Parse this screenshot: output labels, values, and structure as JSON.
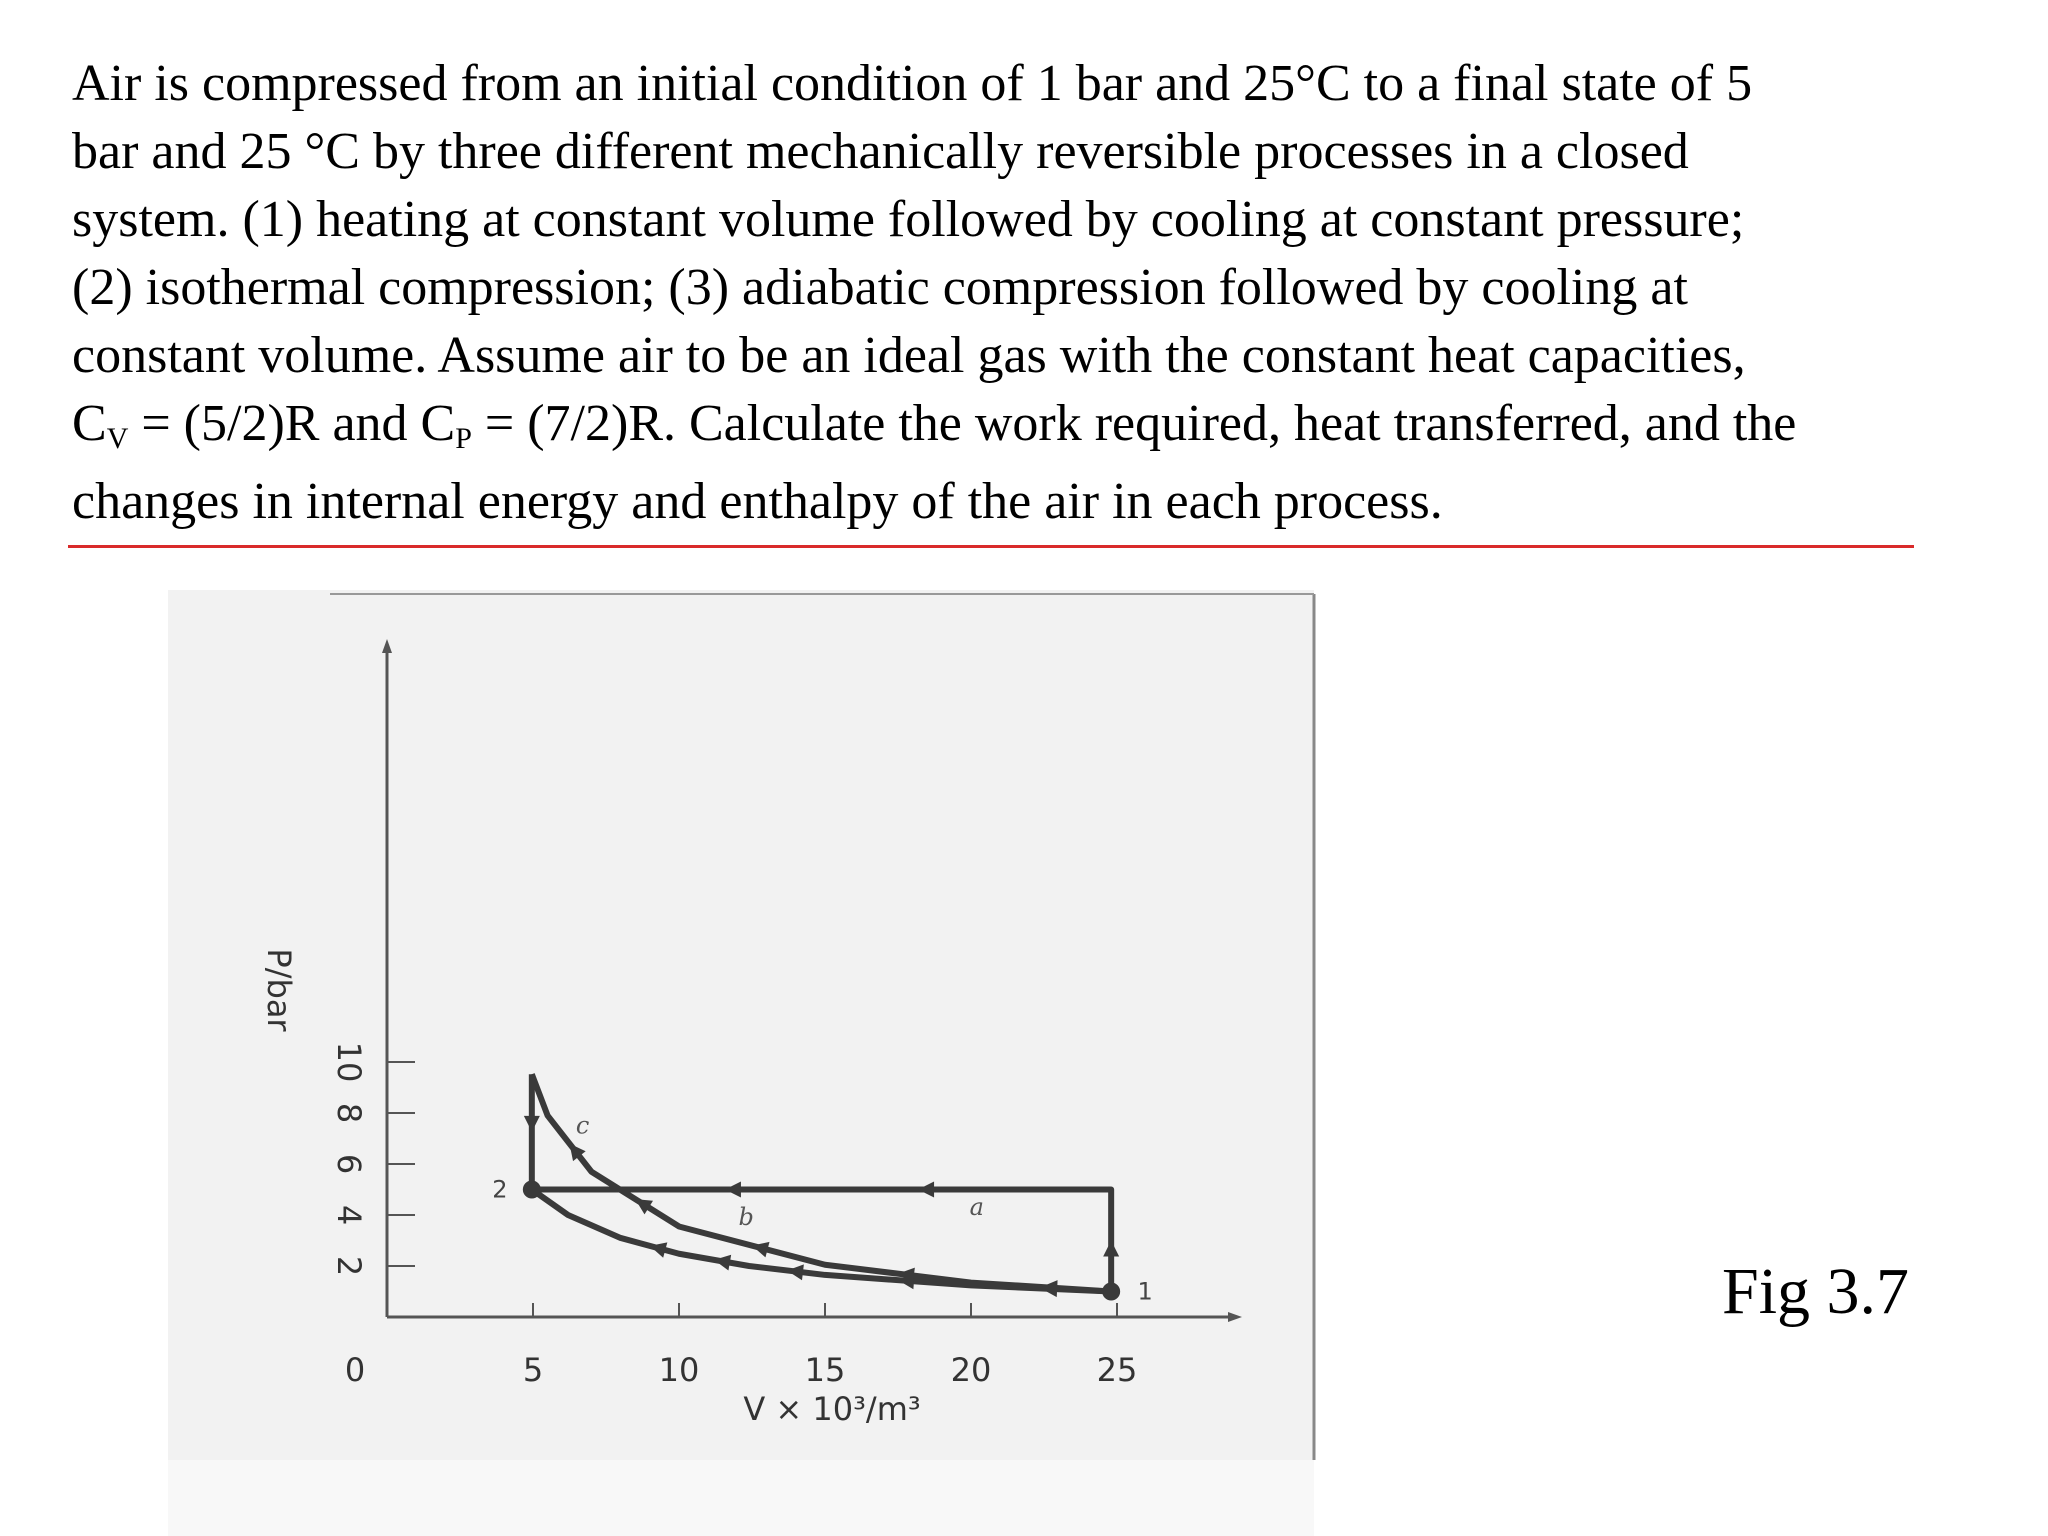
{
  "problem": {
    "line1": "Air is compressed from an initial condition of 1 bar and 25°C to a final state of 5",
    "line2": "bar and 25 °C by three different mechanically reversible processes in a closed",
    "line3": "system. (1) heating at constant volume followed by cooling at constant pressure;",
    "line4": "(2) isothermal compression; (3) adiabatic compression followed by cooling at",
    "line5": "constant volume. Assume air to be an ideal gas with the constant heat capacities,",
    "line6a": "C",
    "line6_sub_v": "V",
    "line6b": " = (5/2)R and C",
    "line6_sub_p": "P",
    "line6c": " = (7/2)R. Calculate the work required, heat transferred, and the",
    "line7": "changes in internal energy and enthalpy of the air in each process."
  },
  "figure_label": "Fig 3.7",
  "colors": {
    "rule": "#d92a2a",
    "curve": "#3a3a3a",
    "axis": "#555555"
  },
  "chart_data": {
    "type": "line",
    "xlabel": "V × 10³/m³",
    "ylabel": "P/bar",
    "xlim": [
      0,
      30
    ],
    "ylim": [
      0,
      10
    ],
    "x_ticks": [
      "0",
      "5",
      "10",
      "15",
      "20",
      "25"
    ],
    "y_ticks": [
      "2",
      "4",
      "6",
      "8",
      "10"
    ],
    "point_labels": [
      {
        "label": "1",
        "x": 24.8,
        "y": 1
      },
      {
        "label": "2",
        "x": 4.96,
        "y": 5
      }
    ],
    "path_labels": [
      {
        "label": "a",
        "x": 20.2,
        "y": 4
      },
      {
        "label": "b",
        "x": 12.3,
        "y": 3.6
      },
      {
        "label": "c",
        "x": 6.7,
        "y": 7.2
      }
    ],
    "series": [
      {
        "name": "a",
        "x": [
          24.8,
          24.8,
          4.96
        ],
        "y": [
          1,
          5,
          5
        ]
      },
      {
        "name": "b",
        "x": [
          24.8,
          20,
          15,
          12.4,
          10,
          8,
          6.2,
          4.96
        ],
        "y": [
          1,
          1.24,
          1.65,
          2,
          2.48,
          3.1,
          4,
          5
        ]
      },
      {
        "name": "c",
        "x": [
          24.8,
          20,
          15,
          10,
          7,
          5.5,
          4.96
        ],
        "y": [
          1,
          1.35,
          2.05,
          3.55,
          5.7,
          7.9,
          9.52
        ]
      },
      {
        "name": "c-vertical",
        "x": [
          4.96,
          4.96
        ],
        "y": [
          9.52,
          5
        ]
      }
    ]
  }
}
